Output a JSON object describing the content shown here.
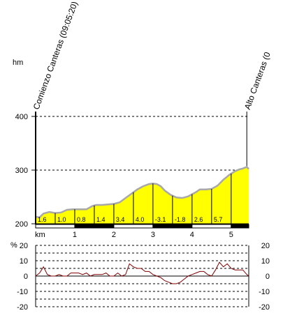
{
  "chart_data": [
    {
      "type": "area",
      "ylabel": "hm",
      "xlabel": "km",
      "ylim": [
        200,
        400
      ],
      "yticks": [
        200,
        300,
        400
      ],
      "xlim": [
        0,
        5.45
      ],
      "xticks": [
        1,
        2,
        3,
        4,
        5
      ],
      "waypoints": [
        {
          "label": "Comienzo Canteras (09:05:20)",
          "x": 0
        },
        {
          "label": "Alto Canteras (0",
          "x": 5.4
        }
      ],
      "x": [
        0,
        0.1,
        0.2,
        0.35,
        0.5,
        0.65,
        0.8,
        0.95,
        1.0,
        1.15,
        1.3,
        1.45,
        1.55,
        1.7,
        1.85,
        2.0,
        2.15,
        2.3,
        2.45,
        2.6,
        2.75,
        2.9,
        3.0,
        3.1,
        3.2,
        3.3,
        3.45,
        3.6,
        3.75,
        3.9,
        4.0,
        4.1,
        4.2,
        4.35,
        4.5,
        4.65,
        4.8,
        4.95,
        5.1,
        5.2,
        5.3,
        5.4,
        5.45
      ],
      "values": [
        213,
        212,
        219,
        222,
        220,
        221,
        226,
        227,
        227,
        227,
        227,
        233,
        235,
        235,
        236,
        237,
        240,
        248,
        256,
        264,
        270,
        274,
        275,
        274,
        270,
        262,
        254,
        249,
        248,
        251,
        255,
        259,
        264,
        264,
        265,
        271,
        282,
        291,
        298,
        301,
        303,
        306,
        302
      ],
      "segment_grades": [
        "1.6",
        "1.0",
        "0.8",
        "1.4",
        "3.4",
        "4.0",
        "-3.1",
        "-1.8",
        "2.6",
        "5.7"
      ],
      "segment_bounds": [
        0,
        0.5,
        1.0,
        1.5,
        2.0,
        2.5,
        3.0,
        3.5,
        4.0,
        4.5,
        5.0,
        5.45
      ]
    },
    {
      "type": "line",
      "ylabel": "%",
      "ylim": [
        -20,
        20
      ],
      "yticks": [
        -20,
        -10,
        0,
        10,
        20
      ],
      "xlim": [
        0,
        5.45
      ],
      "x": [
        0,
        0.1,
        0.2,
        0.3,
        0.4,
        0.5,
        0.6,
        0.7,
        0.8,
        0.9,
        1.0,
        1.1,
        1.2,
        1.3,
        1.4,
        1.5,
        1.6,
        1.7,
        1.8,
        1.9,
        2.0,
        2.1,
        2.2,
        2.3,
        2.4,
        2.5,
        2.6,
        2.7,
        2.8,
        2.9,
        3.0,
        3.1,
        3.2,
        3.3,
        3.4,
        3.5,
        3.6,
        3.7,
        3.8,
        3.9,
        4.0,
        4.1,
        4.2,
        4.3,
        4.4,
        4.5,
        4.6,
        4.7,
        4.8,
        4.9,
        5.0,
        5.1,
        5.2,
        5.3,
        5.4,
        5.45
      ],
      "values": [
        0,
        2,
        6,
        1,
        0,
        0,
        1,
        0,
        0,
        2,
        2,
        2,
        1,
        2,
        0,
        1,
        1,
        1,
        2,
        0,
        0,
        2,
        0,
        1,
        8,
        6,
        5,
        5,
        3,
        3,
        1,
        0,
        -1,
        -3,
        -4,
        -5,
        -5,
        -4,
        -2,
        0,
        1,
        2,
        3,
        3,
        1,
        0,
        4,
        9,
        6,
        8,
        5,
        4,
        4,
        4,
        1,
        0
      ]
    }
  ]
}
